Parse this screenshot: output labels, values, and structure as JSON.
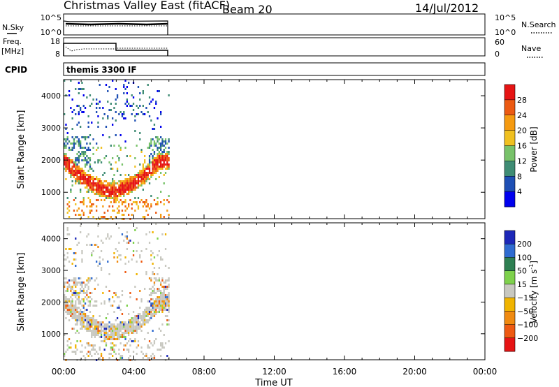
{
  "header": {
    "station": "Christmas Valley East (fitACF)",
    "beam": "Beam 20",
    "date": "14/Jul/2012"
  },
  "top_panels": {
    "nsky_label": "N.Sky",
    "nsearch_label": "N.Search",
    "nsky_ticks": [
      "10^5",
      "10^0"
    ],
    "freq_label": "Freq.",
    "freq_unit": "[MHz]",
    "freq_ticks": [
      "18",
      "8"
    ],
    "nave_label": "Nave",
    "nave_ticks": [
      "60",
      "0"
    ],
    "cpid_label": "CPID",
    "cpid_text": "themis 3300 IF"
  },
  "colors": {
    "power": [
      "#0000ee",
      "#1e4fb4",
      "#3f8c74",
      "#78c26a",
      "#f0c020",
      "#f59a10",
      "#ec5a12",
      "#e61414"
    ],
    "velocity": [
      "#1c27b8",
      "#2f6bd0",
      "#2e7f52",
      "#7ed14c",
      "#c8c8c0",
      "#f0b400",
      "#f08a10",
      "#ee5a12",
      "#e61414"
    ]
  },
  "chart_data": [
    {
      "type": "heatmap",
      "name": "power",
      "x_ticks": [
        "00:00",
        "04:00",
        "08:00",
        "12:00",
        "16:00",
        "20:00",
        "00:00"
      ],
      "xlim_hours": [
        0,
        24
      ],
      "xlabel": "Time UT",
      "ylabel": "Slant Range [km]",
      "y_ticks": [
        1000,
        2000,
        3000,
        4000
      ],
      "ylim": [
        180,
        4500
      ],
      "colorbar_label": "Power [dB]",
      "colorbar_ticks": [
        "4",
        "8",
        "12",
        "16",
        "20",
        "24",
        "28"
      ],
      "data_extent_hours": [
        0,
        6
      ]
    },
    {
      "type": "heatmap",
      "name": "velocity",
      "x_ticks": [
        "00:00",
        "04:00",
        "08:00",
        "12:00",
        "16:00",
        "20:00",
        "00:00"
      ],
      "xlim_hours": [
        0,
        24
      ],
      "xlabel": "Time UT",
      "ylabel": "Slant Range [km]",
      "y_ticks": [
        1000,
        2000,
        3000,
        4000
      ],
      "ylim": [
        180,
        4500
      ],
      "colorbar_label": "Velocity [m s",
      "colorbar_label_sup": "-1",
      "colorbar_label_end": "]",
      "colorbar_ticks": [
        "200",
        "100",
        "50",
        "15",
        "−15",
        "−50",
        "−100",
        "−200"
      ],
      "data_extent_hours": [
        0,
        6
      ]
    }
  ]
}
